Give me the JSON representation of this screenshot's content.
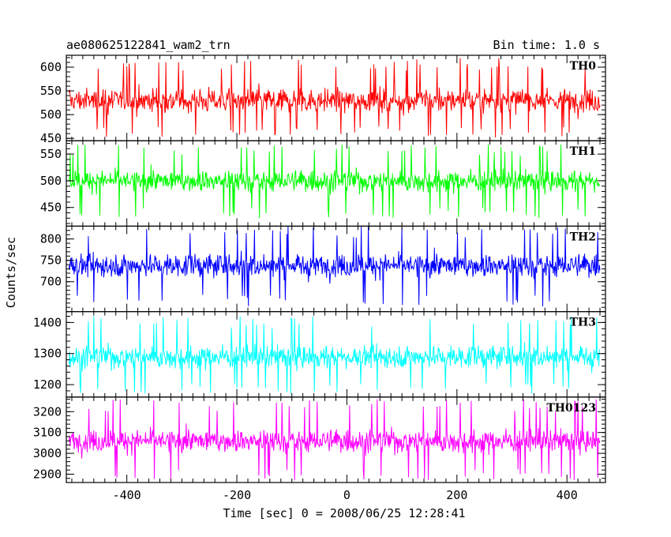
{
  "header": {
    "title": "ae080625122841_wam2_trn",
    "bin_time": "Bin time: 1.0 s"
  },
  "axes": {
    "xlabel": "Time [sec] 0 = 2008/06/25 12:28:41",
    "ylabel": "Counts/sec"
  },
  "chart_data": {
    "type": "line",
    "title": "ae080625122841_wam2_trn",
    "xlabel": "Time [sec] 0 = 2008/06/25 12:28:41",
    "ylabel": "Counts/sec",
    "xlim": [
      -510,
      470
    ],
    "x_range_data": [
      -505,
      460
    ],
    "x_ticks": [
      -400,
      -200,
      0,
      200,
      400
    ],
    "panels": [
      {
        "name": "TH0",
        "color": "#ff0000",
        "ylim": [
          445,
          625
        ],
        "yticks": [
          450,
          500,
          550,
          600
        ],
        "mean": 530,
        "noise": 28,
        "spike_up": 620,
        "spike_down": 452
      },
      {
        "name": "TH1",
        "color": "#00ff00",
        "ylim": [
          415,
          575
        ],
        "yticks": [
          450,
          500,
          550
        ],
        "mean": 500,
        "noise": 22,
        "spike_up": 568,
        "spike_down": 430
      },
      {
        "name": "TH2",
        "color": "#0000ff",
        "ylim": [
          630,
          830
        ],
        "yticks": [
          700,
          750,
          800
        ],
        "mean": 738,
        "noise": 30,
        "spike_up": 830,
        "spike_down": 642
      },
      {
        "name": "TH3",
        "color": "#00ffff",
        "ylim": [
          1160,
          1435
        ],
        "yticks": [
          1200,
          1300,
          1400
        ],
        "mean": 1290,
        "noise": 40,
        "spike_up": 1420,
        "spike_down": 1170
      },
      {
        "name": "TH0123",
        "color": "#ff00ff",
        "ylim": [
          2860,
          3270
        ],
        "yticks": [
          2900,
          3000,
          3100,
          3200
        ],
        "mean": 3060,
        "noise": 60,
        "spike_up": 3260,
        "spike_down": 2870
      }
    ]
  }
}
